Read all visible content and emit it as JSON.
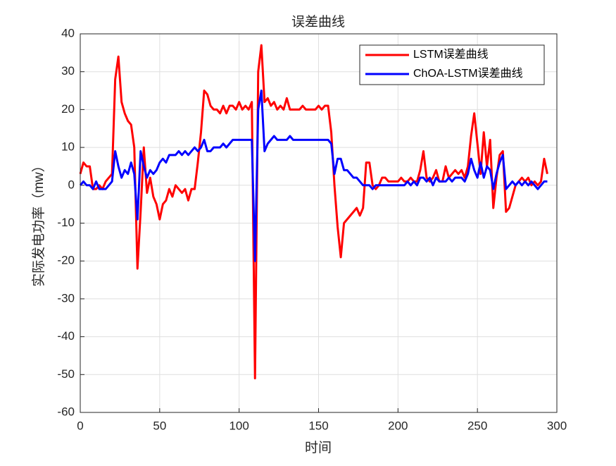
{
  "chart_data": {
    "type": "line",
    "title": "误差曲线",
    "x_label": "时间",
    "y_label": "实际发电功率（mw）",
    "x": [
      0,
      2,
      4,
      6,
      8,
      10,
      12,
      14,
      16,
      18,
      20,
      22,
      24,
      26,
      28,
      30,
      32,
      34,
      36,
      38,
      40,
      42,
      44,
      46,
      48,
      50,
      52,
      54,
      56,
      58,
      60,
      62,
      64,
      66,
      68,
      70,
      72,
      74,
      76,
      78,
      80,
      82,
      84,
      86,
      88,
      90,
      92,
      94,
      96,
      98,
      100,
      102,
      104,
      106,
      108,
      110,
      112,
      114,
      116,
      118,
      120,
      122,
      124,
      126,
      128,
      130,
      132,
      134,
      136,
      138,
      140,
      142,
      144,
      146,
      148,
      150,
      152,
      154,
      156,
      158,
      160,
      162,
      164,
      166,
      168,
      170,
      172,
      174,
      176,
      178,
      180,
      182,
      184,
      186,
      188,
      190,
      192,
      194,
      196,
      198,
      200,
      202,
      204,
      206,
      208,
      210,
      212,
      214,
      216,
      218,
      220,
      222,
      224,
      226,
      228,
      230,
      232,
      234,
      236,
      238,
      240,
      242,
      244,
      246,
      248,
      250,
      252,
      254,
      256,
      258,
      260,
      262,
      264,
      266,
      268,
      270,
      272,
      274,
      276,
      278,
      280,
      282,
      284,
      286,
      288,
      290,
      292,
      294
    ],
    "series": [
      {
        "name": "LSTM误差曲线",
        "color": "#ff0000",
        "values": [
          3,
          6,
          5,
          5,
          -1,
          -1,
          0,
          -1,
          1,
          2,
          3,
          28,
          34,
          22,
          19,
          17,
          16,
          10,
          -22,
          -7,
          10,
          -2,
          2,
          -3,
          -5,
          -9,
          -5,
          -4,
          -1,
          -3,
          0,
          -1,
          -2,
          -1,
          -4,
          -1,
          -1,
          6,
          14,
          25,
          24,
          21,
          20,
          20,
          19,
          21,
          19,
          21,
          21,
          20,
          22,
          20,
          21,
          20,
          22,
          -51,
          30,
          37,
          22,
          23,
          21,
          22,
          20,
          21,
          20,
          23,
          20,
          20,
          20,
          20,
          21,
          20,
          20,
          20,
          20,
          21,
          20,
          21,
          21,
          14,
          0,
          -11,
          -19,
          -10,
          -9,
          -8,
          -7,
          -6,
          -8,
          -6,
          6,
          6,
          0,
          -1,
          0,
          2,
          2,
          1,
          1,
          1,
          1,
          2,
          1,
          1,
          2,
          1,
          1,
          4,
          9,
          2,
          1,
          2,
          4,
          1,
          1,
          5,
          2,
          3,
          4,
          3,
          4,
          2,
          5,
          13,
          19,
          11,
          3,
          14,
          5,
          12,
          -6,
          2,
          8,
          9,
          -7,
          -6,
          -3,
          0,
          1,
          2,
          1,
          2,
          0,
          1,
          0,
          1,
          7,
          3
        ]
      },
      {
        "name": "ChOA-LSTM误差曲线",
        "color": "#0000ff",
        "values": [
          0,
          1,
          0,
          0,
          -1,
          1,
          -1,
          -1,
          -1,
          0,
          1,
          9,
          5,
          2,
          4,
          3,
          6,
          3,
          -9,
          9,
          5,
          2,
          4,
          3,
          4,
          6,
          7,
          6,
          8,
          8,
          8,
          9,
          8,
          9,
          8,
          9,
          10,
          9,
          10,
          12,
          9,
          9,
          10,
          10,
          10,
          11,
          10,
          11,
          12,
          12,
          12,
          12,
          12,
          12,
          12,
          -20,
          20,
          25,
          9,
          11,
          12,
          13,
          12,
          12,
          12,
          12,
          13,
          12,
          12,
          12,
          12,
          12,
          12,
          12,
          12,
          12,
          12,
          12,
          12,
          11,
          3,
          7,
          7,
          4,
          4,
          3,
          2,
          2,
          1,
          0,
          0,
          0,
          -1,
          0,
          0,
          0,
          0,
          0,
          0,
          0,
          0,
          0,
          0,
          1,
          0,
          1,
          0,
          2,
          2,
          1,
          2,
          0,
          2,
          1,
          1,
          1,
          2,
          1,
          2,
          2,
          2,
          1,
          3,
          7,
          4,
          2,
          6,
          2,
          5,
          4,
          -1,
          3,
          6,
          8,
          -1,
          0,
          1,
          0,
          1,
          0,
          1,
          0,
          1,
          0,
          -1,
          0,
          1,
          1
        ]
      }
    ],
    "xlim": [
      0,
      300
    ],
    "xticks": [
      0,
      50,
      100,
      150,
      200,
      250,
      300
    ],
    "ylim": [
      -60,
      40
    ],
    "yticks": [
      -60,
      -50,
      -40,
      -30,
      -20,
      -10,
      0,
      10,
      20,
      30,
      40
    ],
    "grid": true,
    "legend": "top-right"
  }
}
